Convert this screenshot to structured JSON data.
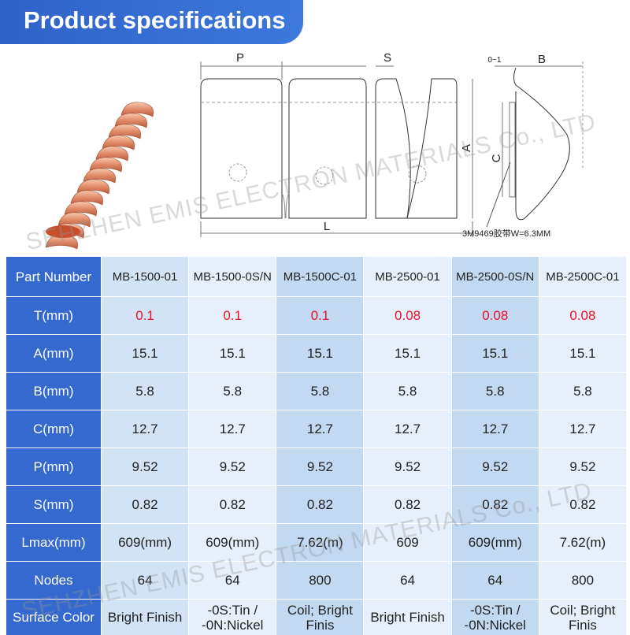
{
  "header": {
    "title": "Product specifications"
  },
  "diagram": {
    "p": "P",
    "s": "S",
    "zero_one": "0~1",
    "b": "B",
    "a": "A",
    "c": "C",
    "l": "L",
    "tape": "3M9469胶带W=6.3MM"
  },
  "watermarks": [
    "SEHZHEN EMIS ELECTRON MATERIALS Co., LTD",
    "SEHZHEN EMIS ELECTRON MATERIALS Co., LTD"
  ],
  "table": {
    "header": [
      "Part Number",
      "MB-1500-01",
      "MB-1500-0S/N",
      "MB-1500C-01",
      "MB-2500-01",
      "MB-2500-0S/N",
      "MB-2500C-01"
    ],
    "rows": [
      [
        "T(mm)",
        "0.1",
        "0.1",
        "0.1",
        "0.08",
        "0.08",
        "0.08"
      ],
      [
        "A(mm)",
        "15.1",
        "15.1",
        "15.1",
        "15.1",
        "15.1",
        "15.1"
      ],
      [
        "B(mm)",
        "5.8",
        "5.8",
        "5.8",
        "5.8",
        "5.8",
        "5.8"
      ],
      [
        "C(mm)",
        "12.7",
        "12.7",
        "12.7",
        "12.7",
        "12.7",
        "12.7"
      ],
      [
        "P(mm)",
        "9.52",
        "9.52",
        "9.52",
        "9.52",
        "9.52",
        "9.52"
      ],
      [
        "S(mm)",
        "0.82",
        "0.82",
        "0.82",
        "0.82",
        "0.82",
        "0.82"
      ],
      [
        "Lmax(mm)",
        "609(mm)",
        "609(mm)",
        "7.62(m)",
        "609",
        "609(mm)",
        "7.62(m)"
      ],
      [
        "Nodes",
        "64",
        "64",
        "800",
        "64",
        "64",
        "800"
      ],
      [
        "Surface Color",
        "Bright Finish",
        "-0S:Tin / -0N:Nickel",
        "Coil; Bright Finis",
        "Bright Finish",
        "-0S:Tin / -0N:Nickel",
        "Coil; Bright Finis"
      ]
    ]
  }
}
